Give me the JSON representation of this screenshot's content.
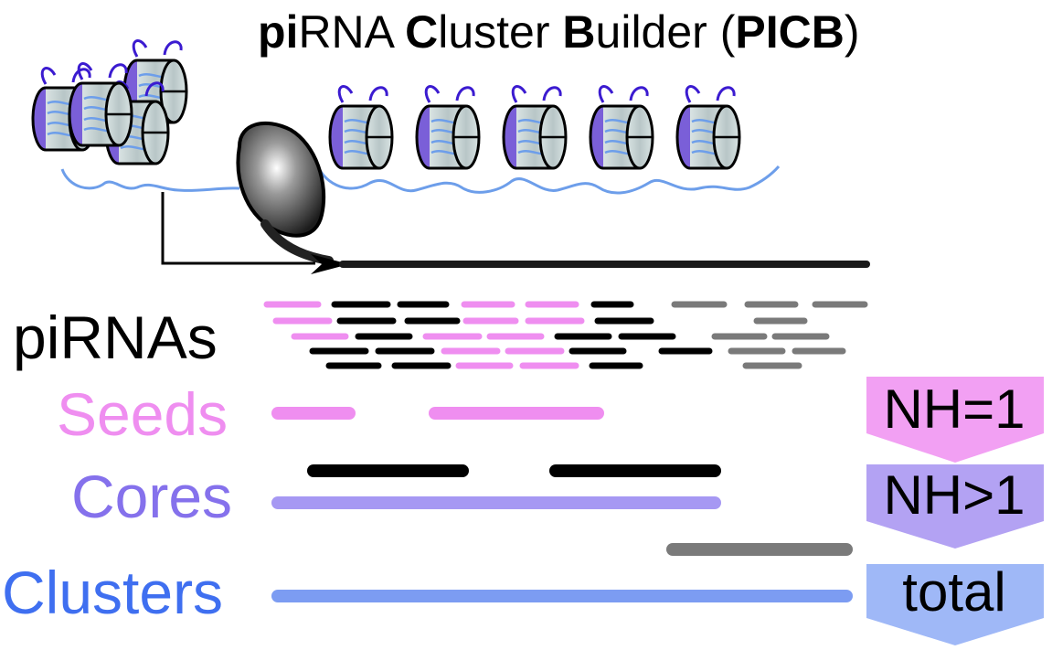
{
  "title": {
    "parts": [
      {
        "text": "pi",
        "bold": true
      },
      {
        "text": "RNA ",
        "bold": false
      },
      {
        "text": "C",
        "bold": true
      },
      {
        "text": "luster ",
        "bold": false
      },
      {
        "text": "B",
        "bold": true
      },
      {
        "text": "uilder (",
        "bold": false
      },
      {
        "text": "PICB",
        "bold": true
      },
      {
        "text": ")",
        "bold": false
      }
    ]
  },
  "rows": {
    "pirnas": {
      "label": "piRNAs",
      "color": "#000000"
    },
    "seeds": {
      "label": "Seeds",
      "color": "#ef8ef0"
    },
    "cores": {
      "label": "Cores",
      "color": "#8571ec"
    },
    "clusters": {
      "label": "Clusters",
      "color": "#3f6ff0"
    }
  },
  "badges": {
    "nh1": {
      "label": "NH=1",
      "color": "#f2a0f3"
    },
    "nhgt1": {
      "label": "NH>1",
      "color": "#b3a2f3"
    },
    "total": {
      "label": "total",
      "color": "#9fb8f7"
    }
  },
  "colors": {
    "unique_reads": "#ef8ef0",
    "multi_reads": "#000000",
    "extra_reads": "#7a7a7a",
    "core_bar": "#a698f3",
    "cluster_bar": "#7c9cf2",
    "dna": "#6d9eea",
    "histone_tail": "#3b1bd0",
    "polymerase": "#222222"
  }
}
